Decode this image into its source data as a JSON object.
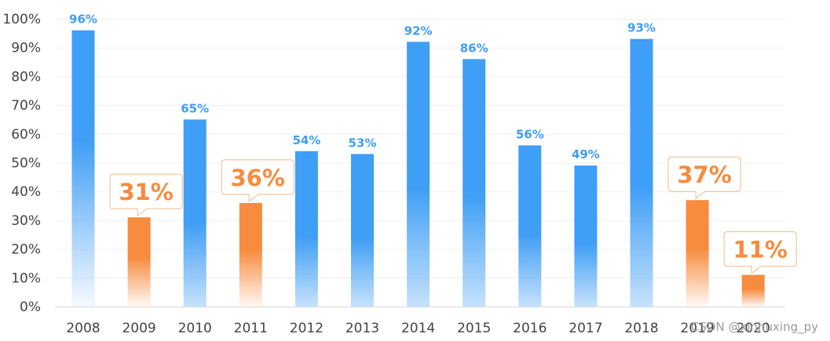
{
  "chart_data": {
    "type": "bar",
    "categories": [
      "2008",
      "2009",
      "2010",
      "2011",
      "2012",
      "2013",
      "2014",
      "2015",
      "2016",
      "2017",
      "2018",
      "2019",
      "2020"
    ],
    "values": [
      96,
      31,
      65,
      36,
      54,
      53,
      92,
      86,
      56,
      49,
      93,
      37,
      11
    ],
    "data_labels": [
      "96%",
      "31%",
      "65%",
      "36%",
      "54%",
      "53%",
      "92%",
      "86%",
      "56%",
      "49%",
      "93%",
      "37%",
      "11%"
    ],
    "highlighted": [
      false,
      true,
      false,
      true,
      false,
      false,
      false,
      false,
      false,
      false,
      false,
      true,
      true
    ],
    "title": "",
    "xlabel": "",
    "ylabel": "",
    "ylim": [
      0,
      100
    ],
    "yticks": [
      "0%",
      "10%",
      "20%",
      "30%",
      "40%",
      "50%",
      "60%",
      "70%",
      "80%",
      "90%",
      "100%"
    ],
    "grid": true,
    "colors": {
      "normal": "#3f9ef5",
      "highlight": "#f78b3e",
      "callout_border": "#f6b98c"
    }
  },
  "watermark": "CSDN @xinhuxing_py"
}
